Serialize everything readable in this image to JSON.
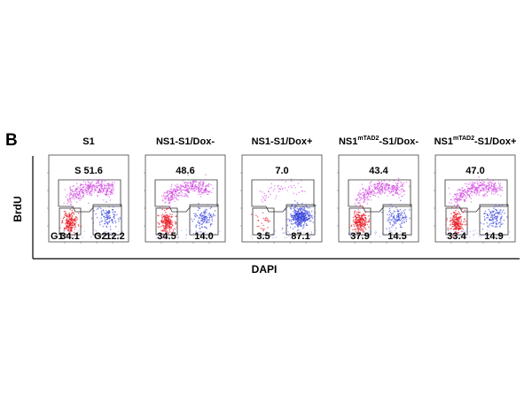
{
  "figure": {
    "panel_label": "B",
    "axis_x_label": "DAPI",
    "axis_y_label": "BrdU",
    "colors": {
      "s_phase": "#cc33dd",
      "g1": "#e8202a",
      "g2": "#2a35d8",
      "gate": "#333333",
      "axis": "#000000"
    },
    "panels": [
      {
        "title": "S1",
        "title_sup": "",
        "title_suffix": "",
        "s_label": "S",
        "s_value": "51.6",
        "g1_label": "G1",
        "g1_value": "34.1",
        "g2_label": "G2",
        "g2_value": "12.2",
        "density": {
          "s": 1.0,
          "g1": 0.8,
          "g2": 0.5
        }
      },
      {
        "title": "NS1-S1/Dox-",
        "title_sup": "",
        "title_suffix": "",
        "s_label": "",
        "s_value": "48.6",
        "g1_label": "",
        "g1_value": "34.5",
        "g2_label": "",
        "g2_value": "14.0",
        "density": {
          "s": 0.95,
          "g1": 0.8,
          "g2": 0.55
        }
      },
      {
        "title": "NS1-S1/Dox+",
        "title_sup": "",
        "title_suffix": "",
        "s_label": "",
        "s_value": "7.0",
        "g1_label": "",
        "g1_value": "3.5",
        "g2_label": "",
        "g2_value": "87.1",
        "density": {
          "s": 0.15,
          "g1": 0.1,
          "g2": 1.6
        }
      },
      {
        "title": "NS1",
        "title_sup": "mTAD2",
        "title_suffix": "-S1/Dox-",
        "s_label": "",
        "s_value": "43.4",
        "g1_label": "",
        "g1_value": "37.9",
        "g2_label": "",
        "g2_value": "14.5",
        "density": {
          "s": 0.9,
          "g1": 0.85,
          "g2": 0.55
        }
      },
      {
        "title": "NS1",
        "title_sup": "mTAD2",
        "title_suffix": "-S1/Dox+",
        "s_label": "",
        "s_value": "47.0",
        "g1_label": "",
        "g1_value": "33.4",
        "g2_label": "",
        "g2_value": "14.9",
        "density": {
          "s": 0.95,
          "g1": 0.8,
          "g2": 0.55
        }
      }
    ]
  }
}
